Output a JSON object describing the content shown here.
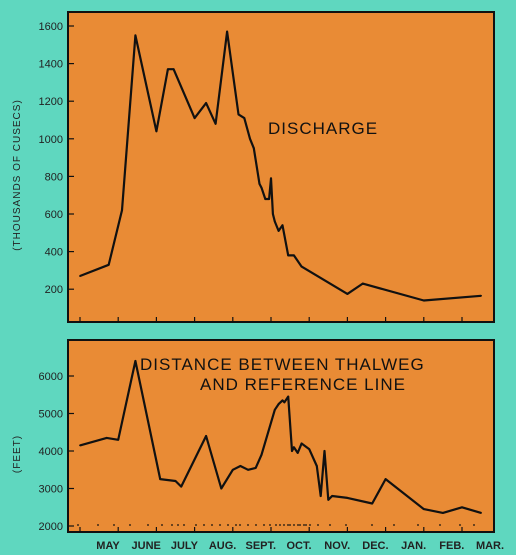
{
  "chart_data": [
    {
      "type": "line",
      "annotation": "DISCHARGE",
      "ylabel": "(THOUSANDS OF CUSECS)",
      "ylim": [
        100,
        1600
      ],
      "yticks": [
        200,
        400,
        600,
        800,
        1000,
        1200,
        1400,
        1600
      ],
      "x": [
        0.0,
        0.75,
        1.1,
        1.45,
        2.0,
        2.3,
        2.45,
        3.0,
        3.3,
        3.55,
        3.85,
        4.15,
        4.3,
        4.45,
        4.55,
        4.7,
        4.75,
        4.85,
        4.95,
        5.0,
        5.05,
        5.1,
        5.2,
        5.3,
        5.45,
        5.6,
        5.8,
        7.0,
        7.4,
        9.0,
        10.5
      ],
      "y": [
        270,
        330,
        620,
        1550,
        1040,
        1370,
        1370,
        1110,
        1190,
        1080,
        1570,
        1130,
        1110,
        1000,
        950,
        760,
        740,
        680,
        680,
        790,
        600,
        560,
        510,
        540,
        380,
        380,
        320,
        175,
        230,
        140,
        165
      ],
      "line_color": "#111111",
      "plot_color": "#e98b35"
    },
    {
      "type": "line",
      "annotation_lines": [
        "DISTANCE BETWEEN THALWEG",
        "AND REFERENCE LINE"
      ],
      "ylabel": "(FEET)",
      "ylim": [
        2000,
        6800
      ],
      "yticks": [
        2000,
        3000,
        4000,
        5000,
        6000
      ],
      "x": [
        0.0,
        0.7,
        1.0,
        1.45,
        2.1,
        2.5,
        2.65,
        3.3,
        3.7,
        4.0,
        4.2,
        4.4,
        4.6,
        4.75,
        5.1,
        5.2,
        5.3,
        5.35,
        5.45,
        5.55,
        5.6,
        5.7,
        5.8,
        6.0,
        6.2,
        6.3,
        6.4,
        6.5,
        6.6,
        7.0,
        7.65,
        8.0,
        9.0,
        9.5,
        10.0,
        10.5
      ],
      "y": [
        4150,
        4350,
        4300,
        6400,
        3250,
        3200,
        3050,
        4400,
        3000,
        3500,
        3600,
        3500,
        3550,
        3900,
        5100,
        5250,
        5350,
        5300,
        5450,
        4000,
        4100,
        3950,
        4200,
        4050,
        3600,
        2800,
        4000,
        2700,
        2800,
        2750,
        2600,
        3250,
        2450,
        2350,
        2500,
        2350
      ],
      "line_color": "#111111",
      "plot_color": "#e98b35"
    }
  ],
  "x_axis": {
    "months": [
      "MAY",
      "JUNE",
      "JULY",
      "AUG.",
      "SEPT.",
      "OCT.",
      "NOV.",
      "DEC.",
      "JAN.",
      "FEB.",
      "MAR."
    ]
  }
}
